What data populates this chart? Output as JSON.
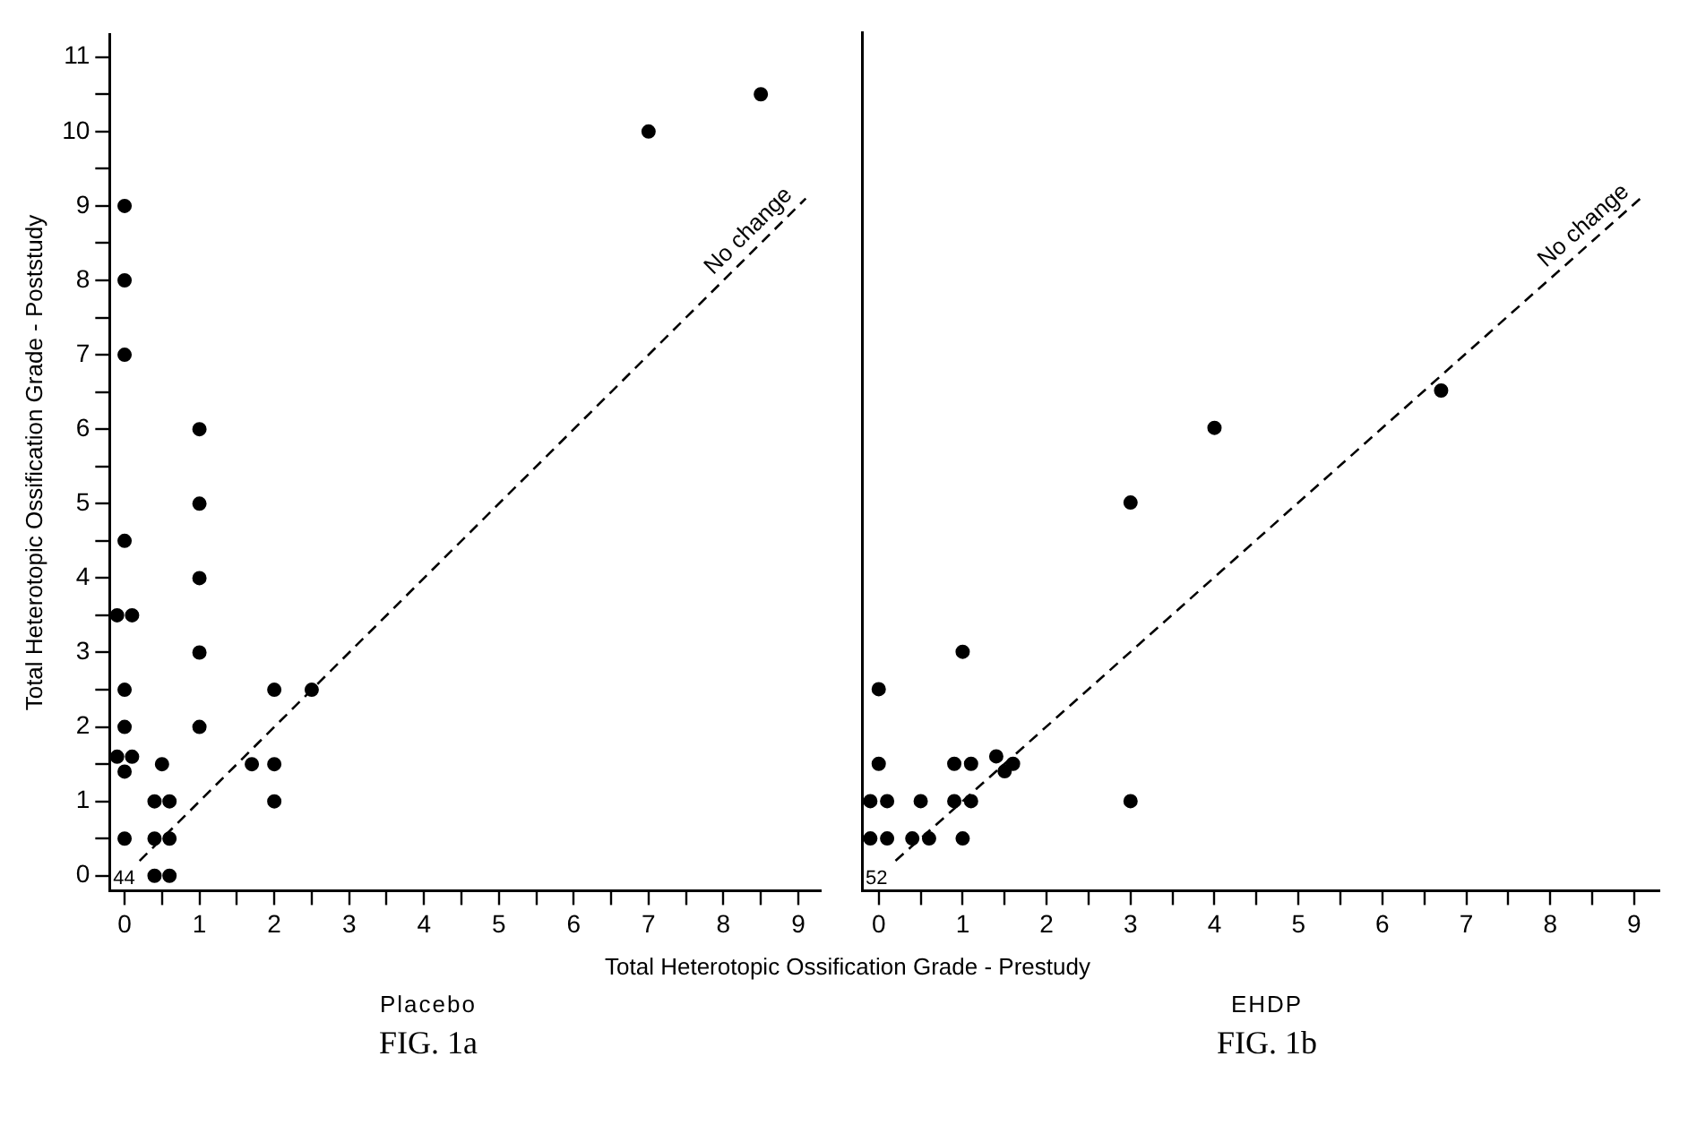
{
  "chart_data": [
    {
      "type": "scatter",
      "title": "Placebo",
      "xlabel": "Total Heterotopic Ossification Grade - Prestudy",
      "ylabel": "Total Heterotopic Ossification Grade - Poststudy",
      "annotations": [
        "FIG. 1a",
        "44"
      ],
      "series": [
        {
          "type": "scatter",
          "marker": "circle",
          "color": "#000000",
          "x": [
            0,
            0,
            0,
            1,
            1,
            0,
            7,
            8.5,
            1,
            -0.1,
            0.1,
            1,
            0,
            2,
            2.5,
            0,
            1,
            -0.1,
            0.1,
            0,
            0.5,
            1.7,
            2,
            0.4,
            0.6,
            2,
            0,
            0.4,
            0.6,
            0.4,
            0.6
          ],
          "values": [
            9,
            8,
            7,
            6,
            5,
            4.5,
            10,
            10.5,
            4,
            3.5,
            3.5,
            3,
            2.5,
            2.5,
            2.5,
            2,
            2,
            1.6,
            1.6,
            1.4,
            1.5,
            1.5,
            1.5,
            1,
            1,
            1,
            0.5,
            0.5,
            0.5,
            0,
            0
          ]
        },
        {
          "type": "line",
          "name": "No change",
          "line_style": "dashed",
          "color": "#000000",
          "x": [
            0.2,
            9.1
          ],
          "values": [
            0.2,
            9.1
          ]
        }
      ],
      "legend": false,
      "grid": false,
      "xlim": [
        -0.2,
        9.3
      ],
      "ylim": [
        -0.2,
        11.3
      ],
      "xticks": [
        0,
        {
          "value": 0.5,
          "label": null
        },
        1,
        {
          "value": 1.5,
          "label": null
        },
        2,
        {
          "value": 2.5,
          "label": null
        },
        3,
        {
          "value": 3.5,
          "label": null
        },
        4,
        {
          "value": 4.5,
          "label": null
        },
        5,
        {
          "value": 5.5,
          "label": null
        },
        6,
        {
          "value": 6.5,
          "label": null
        },
        7,
        {
          "value": 7.5,
          "label": null
        },
        8,
        {
          "value": 8.5,
          "label": null
        },
        9
      ],
      "yticks": [
        0,
        {
          "value": 0.5,
          "label": null
        },
        1,
        {
          "value": 1.5,
          "label": null
        },
        2,
        {
          "value": 2.5,
          "label": null
        },
        3,
        {
          "value": 3.5,
          "label": null
        },
        4,
        {
          "value": 4.5,
          "label": null
        },
        5,
        {
          "value": 5.5,
          "label": null
        },
        6,
        {
          "value": 6.5,
          "label": null
        },
        7,
        {
          "value": 7.5,
          "label": null
        },
        8,
        {
          "value": 8.5,
          "label": null
        },
        9,
        {
          "value": 9.5,
          "label": null
        },
        10,
        {
          "value": 10.5,
          "label": null
        },
        11
      ]
    },
    {
      "type": "scatter",
      "title": "EHDP",
      "annotations": [
        "FIG. 1b",
        "52"
      ],
      "series": [
        {
          "type": "scatter",
          "marker": "circle",
          "color": "#000000",
          "x": [
            6.7,
            4,
            3,
            1,
            0,
            0,
            0.9,
            1.1,
            1.4,
            1.5,
            1.6,
            -0.1,
            0.1,
            0.5,
            0.9,
            1.1,
            3,
            -0.1,
            0.1,
            0.4,
            0.6,
            1
          ],
          "values": [
            6.5,
            6,
            5,
            3,
            2.5,
            1.5,
            1.5,
            1.5,
            1.6,
            1.4,
            1.5,
            1,
            1,
            1,
            1,
            1,
            1,
            0.5,
            0.5,
            0.5,
            0.5,
            0.5
          ]
        },
        {
          "type": "line",
          "name": "No change",
          "line_style": "dashed",
          "color": "#000000",
          "x": [
            0.2,
            9.1
          ],
          "values": [
            0.2,
            9.1
          ]
        }
      ],
      "legend": false,
      "grid": false,
      "tick_labels": "x",
      "xlim": [
        -0.2,
        9.3
      ],
      "ylim": [
        -0.2,
        11.3
      ],
      "xticks": [
        0,
        {
          "value": 0.5,
          "label": null
        },
        1,
        {
          "value": 1.5,
          "label": null
        },
        2,
        {
          "value": 2.5,
          "label": null
        },
        3,
        {
          "value": 3.5,
          "label": null
        },
        4,
        {
          "value": 4.5,
          "label": null
        },
        5,
        {
          "value": 5.5,
          "label": null
        },
        6,
        {
          "value": 6.5,
          "label": null
        },
        7,
        {
          "value": 7.5,
          "label": null
        },
        8,
        {
          "value": 8.5,
          "label": null
        },
        9
      ]
    }
  ]
}
